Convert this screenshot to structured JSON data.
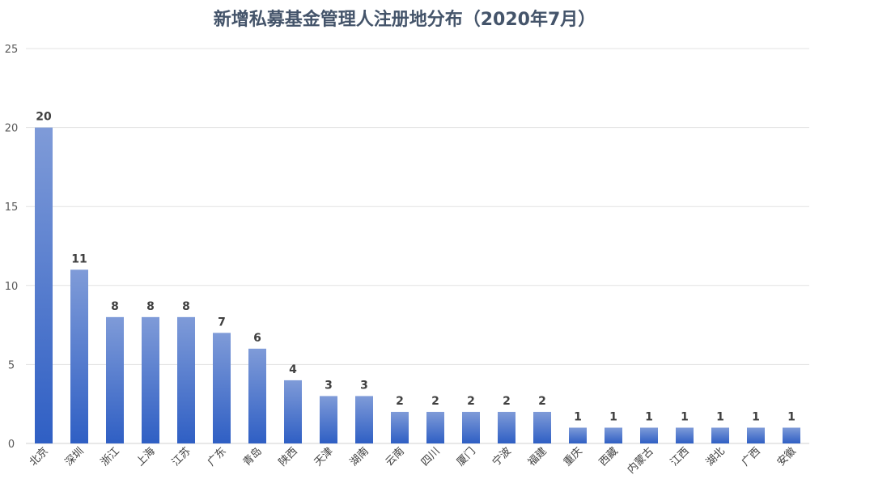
{
  "chart_data": {
    "type": "bar",
    "title": "新增私募基金管理人注册地分布（2020年7月）",
    "xlabel": "",
    "ylabel": "",
    "ylim": [
      0,
      25
    ],
    "yticks": [
      0,
      5,
      10,
      15,
      20,
      25
    ],
    "grid": true,
    "legend": "none",
    "categories": [
      "北京",
      "深圳",
      "浙江",
      "上海",
      "江苏",
      "广东",
      "青岛",
      "陕西",
      "天津",
      "湖南",
      "云南",
      "四川",
      "厦门",
      "宁波",
      "福建",
      "重庆",
      "西藏",
      "内蒙古",
      "江西",
      "湖北",
      "广西",
      "安徽"
    ],
    "values": [
      20,
      11,
      8,
      8,
      8,
      7,
      6,
      4,
      3,
      3,
      2,
      2,
      2,
      2,
      2,
      1,
      1,
      1,
      1,
      1,
      1,
      1
    ],
    "data_labels": true,
    "colors": {
      "bar_top": "#7f9bd8",
      "bar_bottom": "#2f5fc4",
      "title": "#44546a"
    }
  }
}
